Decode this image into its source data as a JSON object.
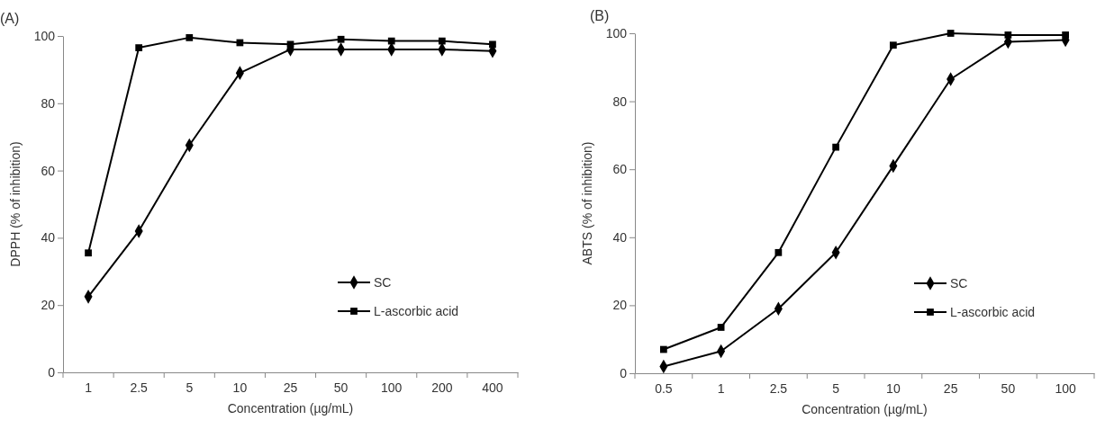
{
  "chart_data": [
    {
      "type": "line",
      "title": "(A)",
      "xlabel": "Concentration  (µg/mL)",
      "ylabel": "DPPH (% of inhibition)",
      "categories": [
        "1",
        "2.5",
        "5",
        "10",
        "25",
        "50",
        "100",
        "200",
        "400"
      ],
      "ylim": [
        0,
        100
      ],
      "yticks": [
        0,
        20,
        40,
        60,
        80,
        100
      ],
      "legend": "bottom right",
      "grid": false,
      "series": [
        {
          "name": "SC",
          "color": "#000000",
          "marker": "diamond",
          "values": [
            22.5,
            42,
            67.5,
            89,
            96,
            96,
            96,
            96,
            95.5
          ]
        },
        {
          "name": "L-ascorbic acid",
          "color": "#000000",
          "marker": "square",
          "values": [
            35.5,
            96.5,
            99.5,
            98,
            97.5,
            99,
            98.5,
            98.5,
            97.5
          ]
        }
      ]
    },
    {
      "type": "line",
      "title": "(B)",
      "xlabel": "Concentration  (µg/mL)",
      "ylabel": "ABTS  (% of inhibition)",
      "categories": [
        "0.5",
        "1",
        "2.5",
        "5",
        "10",
        "25",
        "50",
        "100"
      ],
      "ylim": [
        0,
        100
      ],
      "yticks": [
        0,
        20,
        40,
        60,
        80,
        100
      ],
      "legend": "bottom right",
      "grid": false,
      "series": [
        {
          "name": "SC",
          "color": "#000000",
          "marker": "diamond",
          "values": [
            2,
            6.5,
            19,
            35.5,
            61,
            86.5,
            97.5,
            98
          ]
        },
        {
          "name": "L-ascorbic acid",
          "color": "#000000",
          "marker": "square",
          "values": [
            7,
            13.5,
            35.5,
            66.5,
            96.5,
            100,
            99.5,
            99.5
          ]
        }
      ]
    }
  ]
}
